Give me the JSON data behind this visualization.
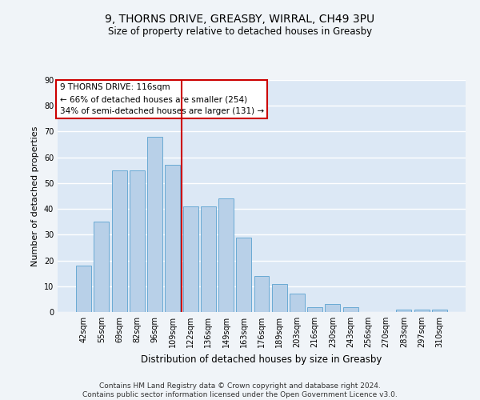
{
  "title_line1": "9, THORNS DRIVE, GREASBY, WIRRAL, CH49 3PU",
  "title_line2": "Size of property relative to detached houses in Greasby",
  "xlabel": "Distribution of detached houses by size in Greasby",
  "ylabel": "Number of detached properties",
  "categories": [
    "42sqm",
    "55sqm",
    "69sqm",
    "82sqm",
    "96sqm",
    "109sqm",
    "122sqm",
    "136sqm",
    "149sqm",
    "163sqm",
    "176sqm",
    "189sqm",
    "203sqm",
    "216sqm",
    "230sqm",
    "243sqm",
    "256sqm",
    "270sqm",
    "283sqm",
    "297sqm",
    "310sqm"
  ],
  "values": [
    18,
    35,
    55,
    55,
    68,
    57,
    41,
    41,
    44,
    29,
    14,
    11,
    7,
    2,
    3,
    2,
    0,
    0,
    1,
    1,
    1
  ],
  "bar_color": "#b8d0e8",
  "bar_edge_color": "#6aaad4",
  "vline_color": "#cc0000",
  "annotation_text": "9 THORNS DRIVE: 116sqm\n← 66% of detached houses are smaller (254)\n34% of semi-detached houses are larger (131) →",
  "annotation_box_color": "#ffffff",
  "annotation_box_edge": "#cc0000",
  "ylim": [
    0,
    90
  ],
  "yticks": [
    0,
    10,
    20,
    30,
    40,
    50,
    60,
    70,
    80,
    90
  ],
  "background_color": "#dce8f5",
  "grid_color": "#ffffff",
  "fig_background": "#f0f4f8",
  "footer_text": "Contains HM Land Registry data © Crown copyright and database right 2024.\nContains public sector information licensed under the Open Government Licence v3.0."
}
